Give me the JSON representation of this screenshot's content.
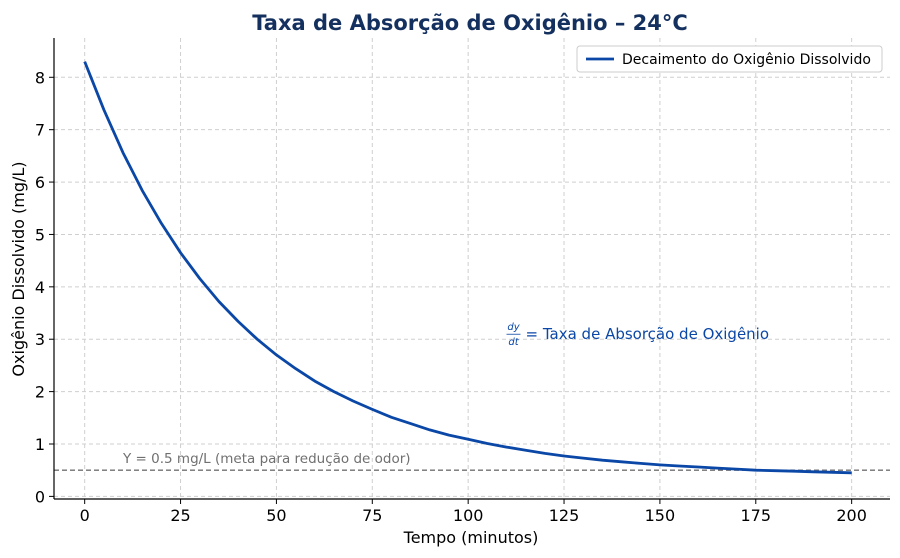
{
  "chart_data": {
    "type": "line",
    "title": "Taxa de Absorção de Oxigênio – 24°C",
    "xlabel": "Tempo (minutos)",
    "ylabel": "Oxigênio Dissolvido (mg/L)",
    "xlim": [
      -8,
      210
    ],
    "ylim": [
      -0.05,
      8.75
    ],
    "xticks": [
      0,
      25,
      50,
      75,
      100,
      125,
      150,
      175,
      200
    ],
    "yticks": [
      0,
      1,
      2,
      3,
      4,
      5,
      6,
      7,
      8
    ],
    "grid": true,
    "legend_position": "top-right",
    "series": [
      {
        "name": "Decaimento do Oxigênio Dissolvido",
        "color": "#0a47a6",
        "x": [
          0,
          5,
          10,
          15,
          20,
          25,
          30,
          35,
          40,
          45,
          50,
          55,
          60,
          65,
          70,
          75,
          80,
          85,
          90,
          95,
          100,
          105,
          110,
          115,
          120,
          125,
          130,
          135,
          140,
          145,
          150,
          155,
          160,
          165,
          170,
          175,
          180,
          185,
          190,
          195,
          200
        ],
        "y": [
          8.3,
          7.38,
          6.56,
          5.84,
          5.21,
          4.65,
          4.16,
          3.72,
          3.34,
          3.0,
          2.7,
          2.44,
          2.2,
          2.0,
          1.82,
          1.66,
          1.51,
          1.39,
          1.27,
          1.17,
          1.09,
          1.01,
          0.94,
          0.88,
          0.82,
          0.77,
          0.73,
          0.69,
          0.66,
          0.63,
          0.6,
          0.58,
          0.56,
          0.54,
          0.52,
          0.5,
          0.49,
          0.48,
          0.47,
          0.46,
          0.45
        ]
      }
    ],
    "reference_line": {
      "y": 0.5,
      "label": "Y = 0.5 mg/L (meta para redução de odor)",
      "label_x": 10,
      "color": "#707070"
    },
    "annotation": {
      "numerator": "dy",
      "denominator": "dt",
      "text": "= Taxa de Absorção de Oxigênio",
      "x": 110,
      "y": 3.0,
      "color": "#0a47a6"
    }
  }
}
